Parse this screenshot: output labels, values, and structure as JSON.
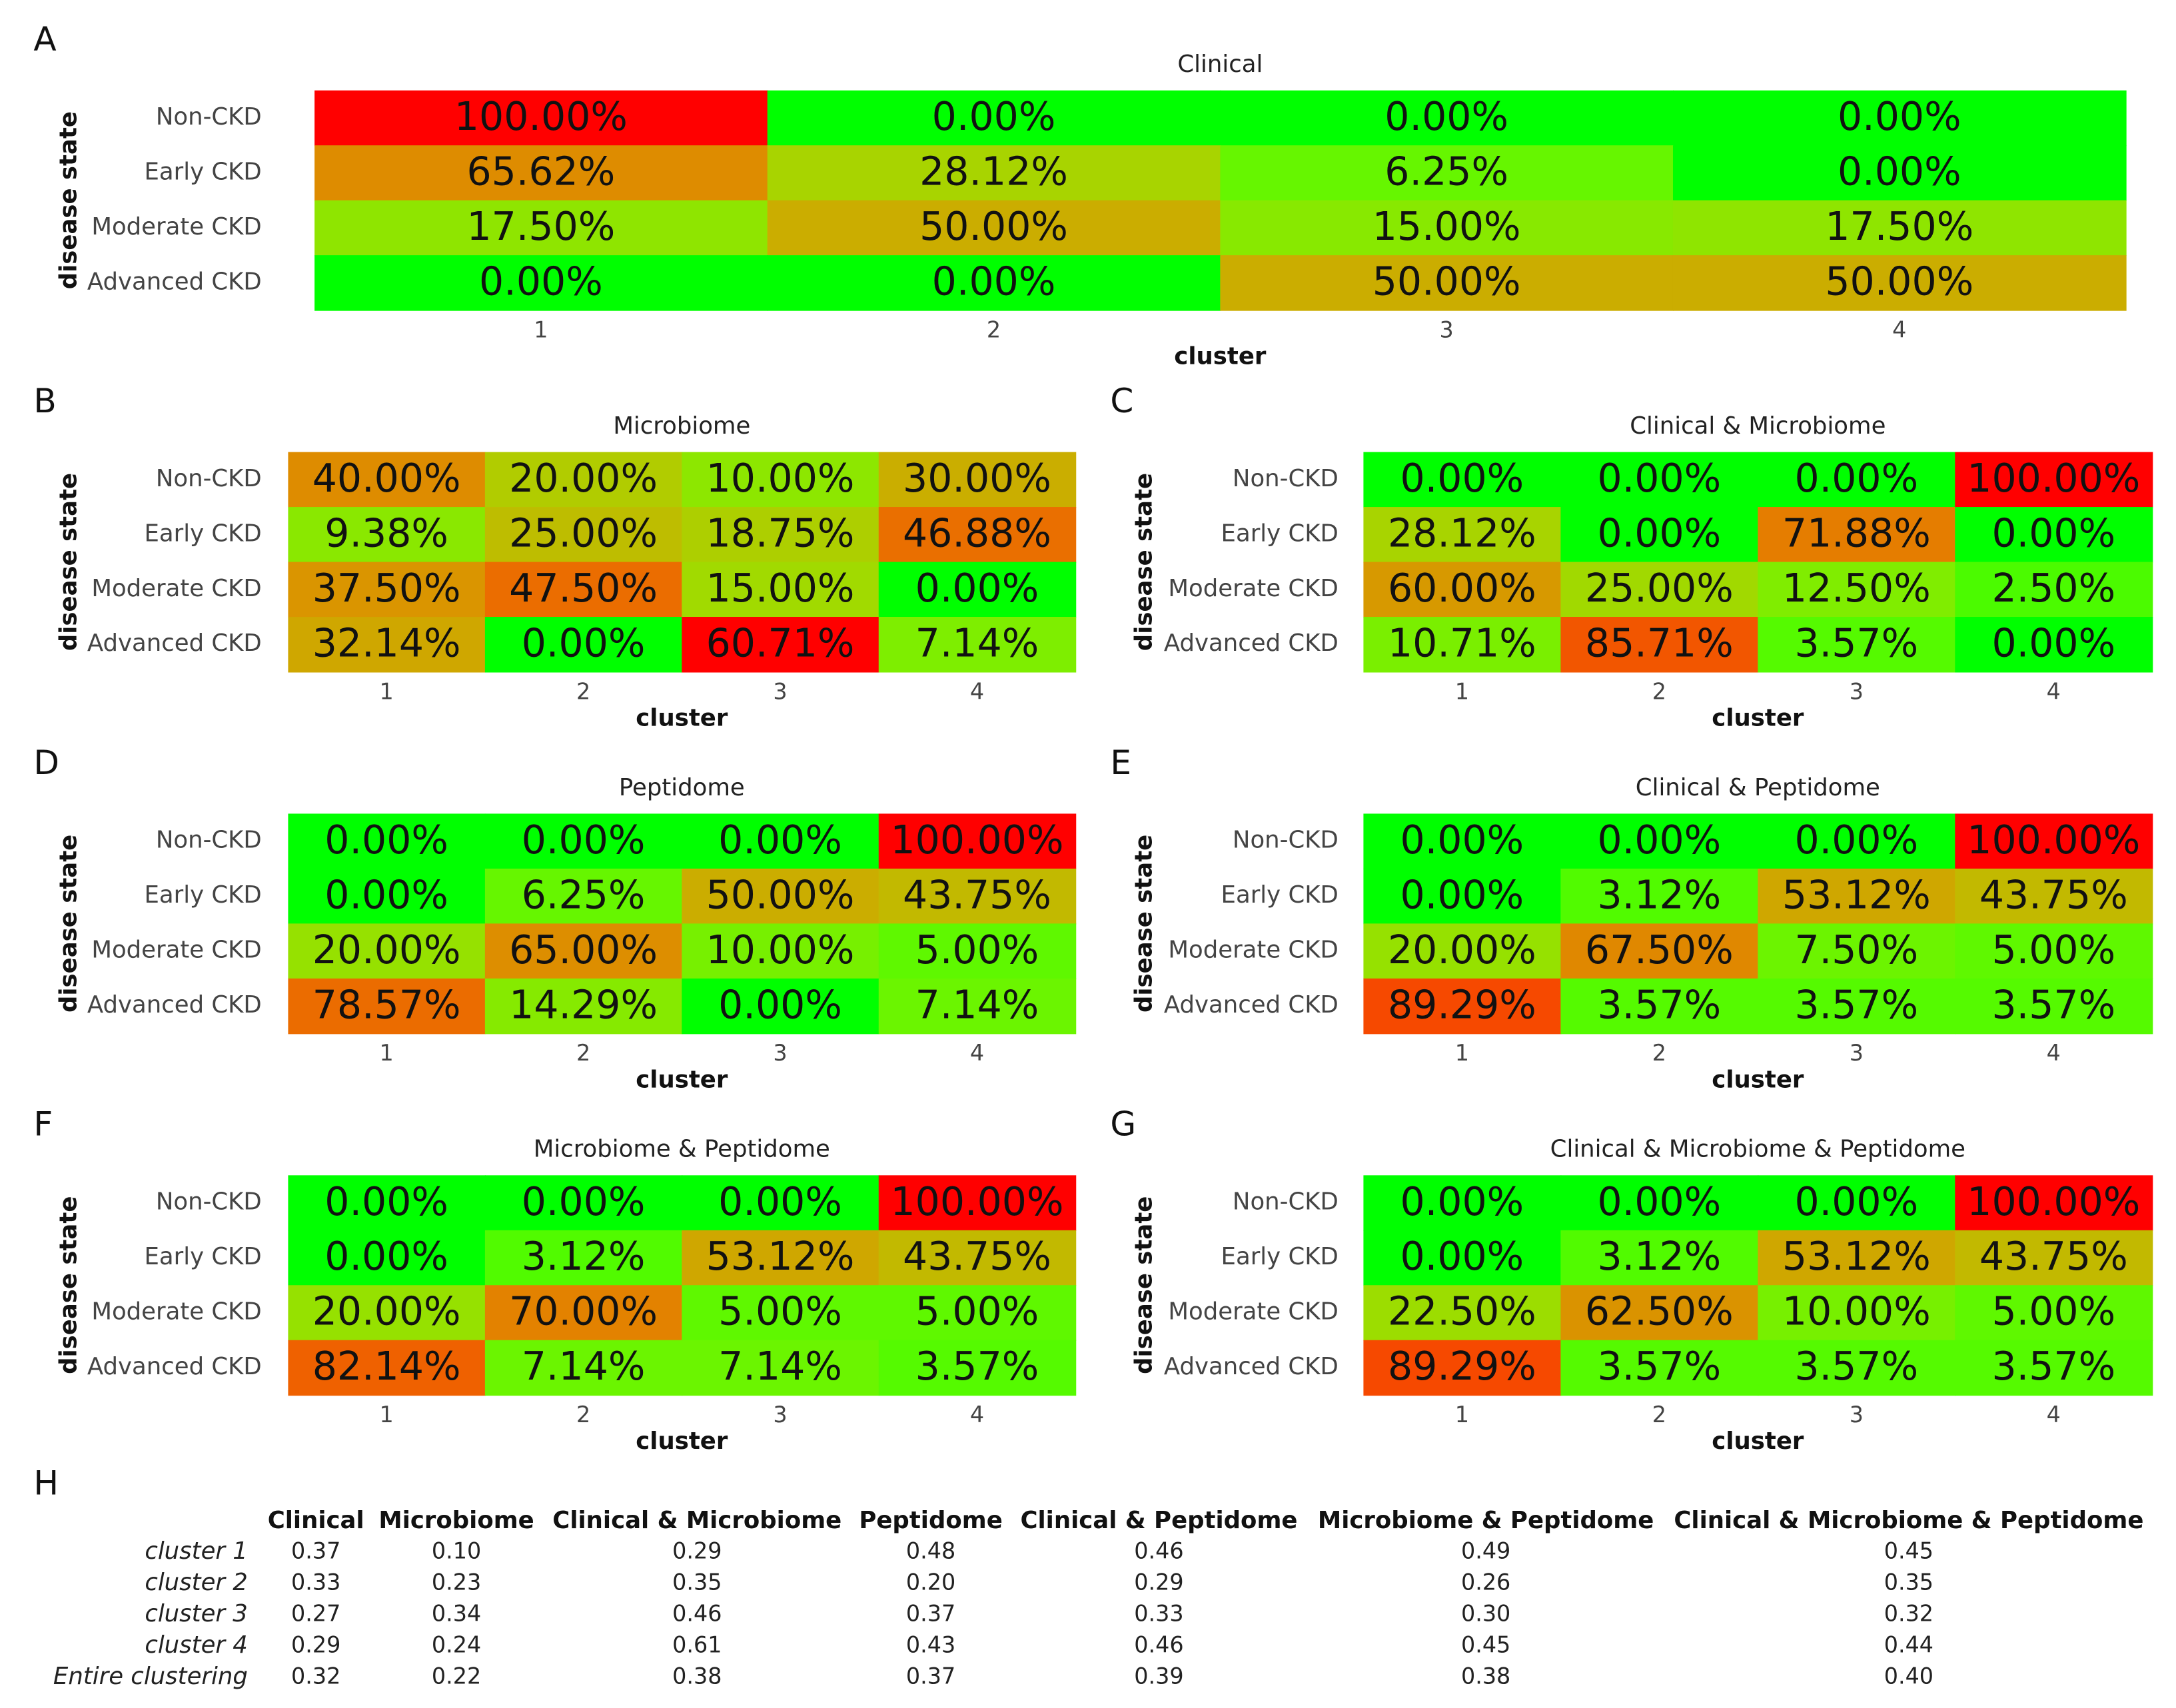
{
  "chart_data": [
    {
      "type": "heatmap",
      "panel": "A",
      "title": "Clinical",
      "xlabel": "cluster",
      "ylabel": "disease state",
      "categories": [
        "1",
        "2",
        "3",
        "4"
      ],
      "rows": [
        "Non-CKD",
        "Early CKD",
        "Moderate CKD",
        "Advanced CKD"
      ],
      "values": [
        [
          100,
          0,
          0,
          0
        ],
        [
          65.62,
          28.12,
          6.25,
          0
        ],
        [
          17.5,
          50,
          15,
          17.5
        ],
        [
          0,
          0,
          50,
          50
        ]
      ],
      "value_labels": [
        [
          "100.00%",
          "0.00%",
          "0.00%",
          "0.00%"
        ],
        [
          "65.62%",
          "28.12%",
          "6.25%",
          "0.00%"
        ],
        [
          "17.50%",
          "50.00%",
          "15.00%",
          "17.50%"
        ],
        [
          "0.00%",
          "0.00%",
          "50.00%",
          "50.00%"
        ]
      ],
      "low_color": "#00ff00",
      "high_color": "#ff0000"
    },
    {
      "type": "heatmap",
      "panel": "B",
      "title": "Microbiome",
      "xlabel": "cluster",
      "ylabel": "disease state",
      "categories": [
        "1",
        "2",
        "3",
        "4"
      ],
      "rows": [
        "Non-CKD",
        "Early CKD",
        "Moderate CKD",
        "Advanced CKD"
      ],
      "values": [
        [
          40,
          20,
          10,
          30
        ],
        [
          9.38,
          25,
          18.75,
          46.88
        ],
        [
          37.5,
          47.5,
          15,
          0
        ],
        [
          32.14,
          0,
          60.71,
          7.14
        ]
      ],
      "value_labels": [
        [
          "40.00%",
          "20.00%",
          "10.00%",
          "30.00%"
        ],
        [
          "9.38%",
          "25.00%",
          "18.75%",
          "46.88%"
        ],
        [
          "37.50%",
          "47.50%",
          "15.00%",
          "0.00%"
        ],
        [
          "32.14%",
          "0.00%",
          "60.71%",
          "7.14%"
        ]
      ],
      "low_color": "#00ff00",
      "high_color": "#ff0000"
    },
    {
      "type": "heatmap",
      "panel": "C",
      "title": "Clinical & Microbiome",
      "xlabel": "cluster",
      "ylabel": "disease state",
      "categories": [
        "1",
        "2",
        "3",
        "4"
      ],
      "rows": [
        "Non-CKD",
        "Early CKD",
        "Moderate CKD",
        "Advanced CKD"
      ],
      "values": [
        [
          0,
          0,
          0,
          100
        ],
        [
          28.12,
          0,
          71.88,
          0
        ],
        [
          60,
          25,
          12.5,
          2.5
        ],
        [
          10.71,
          85.71,
          3.57,
          0
        ]
      ],
      "value_labels": [
        [
          "0.00%",
          "0.00%",
          "0.00%",
          "100.00%"
        ],
        [
          "28.12%",
          "0.00%",
          "71.88%",
          "0.00%"
        ],
        [
          "60.00%",
          "25.00%",
          "12.50%",
          "2.50%"
        ],
        [
          "10.71%",
          "85.71%",
          "3.57%",
          "0.00%"
        ]
      ],
      "low_color": "#00ff00",
      "high_color": "#ff0000"
    },
    {
      "type": "heatmap",
      "panel": "D",
      "title": "Peptidome",
      "xlabel": "cluster",
      "ylabel": "disease state",
      "categories": [
        "1",
        "2",
        "3",
        "4"
      ],
      "rows": [
        "Non-CKD",
        "Early CKD",
        "Moderate CKD",
        "Advanced CKD"
      ],
      "values": [
        [
          0,
          0,
          0,
          100
        ],
        [
          0,
          6.25,
          50,
          43.75
        ],
        [
          20,
          65,
          10,
          5
        ],
        [
          78.57,
          14.29,
          0,
          7.14
        ]
      ],
      "value_labels": [
        [
          "0.00%",
          "0.00%",
          "0.00%",
          "100.00%"
        ],
        [
          "0.00%",
          "6.25%",
          "50.00%",
          "43.75%"
        ],
        [
          "20.00%",
          "65.00%",
          "10.00%",
          "5.00%"
        ],
        [
          "78.57%",
          "14.29%",
          "0.00%",
          "7.14%"
        ]
      ],
      "low_color": "#00ff00",
      "high_color": "#ff0000"
    },
    {
      "type": "heatmap",
      "panel": "E",
      "title": "Clinical & Peptidome",
      "xlabel": "cluster",
      "ylabel": "disease state",
      "categories": [
        "1",
        "2",
        "3",
        "4"
      ],
      "rows": [
        "Non-CKD",
        "Early CKD",
        "Moderate CKD",
        "Advanced CKD"
      ],
      "values": [
        [
          0,
          0,
          0,
          100
        ],
        [
          0,
          3.12,
          53.12,
          43.75
        ],
        [
          20,
          67.5,
          7.5,
          5
        ],
        [
          89.29,
          3.57,
          3.57,
          3.57
        ]
      ],
      "value_labels": [
        [
          "0.00%",
          "0.00%",
          "0.00%",
          "100.00%"
        ],
        [
          "0.00%",
          "3.12%",
          "53.12%",
          "43.75%"
        ],
        [
          "20.00%",
          "67.50%",
          "7.50%",
          "5.00%"
        ],
        [
          "89.29%",
          "3.57%",
          "3.57%",
          "3.57%"
        ]
      ],
      "low_color": "#00ff00",
      "high_color": "#ff0000"
    },
    {
      "type": "heatmap",
      "panel": "F",
      "title": "Microbiome & Peptidome",
      "xlabel": "cluster",
      "ylabel": "disease state",
      "categories": [
        "1",
        "2",
        "3",
        "4"
      ],
      "rows": [
        "Non-CKD",
        "Early CKD",
        "Moderate CKD",
        "Advanced CKD"
      ],
      "values": [
        [
          0,
          0,
          0,
          100
        ],
        [
          0,
          3.12,
          53.12,
          43.75
        ],
        [
          20,
          70,
          5,
          5
        ],
        [
          82.14,
          7.14,
          7.14,
          3.57
        ]
      ],
      "value_labels": [
        [
          "0.00%",
          "0.00%",
          "0.00%",
          "100.00%"
        ],
        [
          "0.00%",
          "3.12%",
          "53.12%",
          "43.75%"
        ],
        [
          "20.00%",
          "70.00%",
          "5.00%",
          "5.00%"
        ],
        [
          "82.14%",
          "7.14%",
          "7.14%",
          "3.57%"
        ]
      ],
      "low_color": "#00ff00",
      "high_color": "#ff0000"
    },
    {
      "type": "heatmap",
      "panel": "G",
      "title": "Clinical & Microbiome & Peptidome",
      "xlabel": "cluster",
      "ylabel": "disease state",
      "categories": [
        "1",
        "2",
        "3",
        "4"
      ],
      "rows": [
        "Non-CKD",
        "Early CKD",
        "Moderate CKD",
        "Advanced CKD"
      ],
      "values": [
        [
          0,
          0,
          0,
          100
        ],
        [
          0,
          3.12,
          53.12,
          43.75
        ],
        [
          22.5,
          62.5,
          10,
          5
        ],
        [
          89.29,
          3.57,
          3.57,
          3.57
        ]
      ],
      "value_labels": [
        [
          "0.00%",
          "0.00%",
          "0.00%",
          "100.00%"
        ],
        [
          "0.00%",
          "3.12%",
          "53.12%",
          "43.75%"
        ],
        [
          "22.50%",
          "62.50%",
          "10.00%",
          "5.00%"
        ],
        [
          "89.29%",
          "3.57%",
          "3.57%",
          "3.57%"
        ]
      ],
      "low_color": "#00ff00",
      "high_color": "#ff0000"
    }
  ],
  "table": {
    "panel": "H",
    "columns": [
      "Clinical",
      "Microbiome",
      "Clinical & Microbiome",
      "Peptidome",
      "Clinical & Peptidome",
      "Microbiome & Peptidome",
      "Clinical & Microbiome & Peptidome"
    ],
    "rows": [
      {
        "label": "cluster 1",
        "cells": [
          "0.37",
          "0.10",
          "0.29",
          "0.48",
          "0.46",
          "0.49",
          "0.45"
        ]
      },
      {
        "label": "cluster 2",
        "cells": [
          "0.33",
          "0.23",
          "0.35",
          "0.20",
          "0.29",
          "0.26",
          "0.35"
        ]
      },
      {
        "label": "cluster 3",
        "cells": [
          "0.27",
          "0.34",
          "0.46",
          "0.37",
          "0.33",
          "0.30",
          "0.32"
        ]
      },
      {
        "label": "cluster 4",
        "cells": [
          "0.29",
          "0.24",
          "0.61",
          "0.43",
          "0.46",
          "0.45",
          "0.44"
        ]
      },
      {
        "label": "Entire clustering",
        "cells": [
          "0.32",
          "0.22",
          "0.38",
          "0.37",
          "0.39",
          "0.38",
          "0.40"
        ]
      }
    ]
  }
}
